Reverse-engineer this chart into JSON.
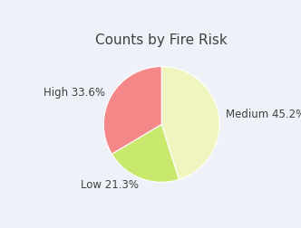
{
  "title": "Counts by Fire Risk",
  "labels": [
    "Medium",
    "Low",
    "High"
  ],
  "percentages": [
    45.2,
    21.3,
    33.6
  ],
  "colors": [
    "#f0f5c0",
    "#c8e86e",
    "#f48888"
  ],
  "startangle": 90,
  "background_color": "#eef2f8",
  "title_fontsize": 11,
  "label_fontsize": 8.5,
  "label_color": "#404040",
  "labeldistance": 1.12
}
